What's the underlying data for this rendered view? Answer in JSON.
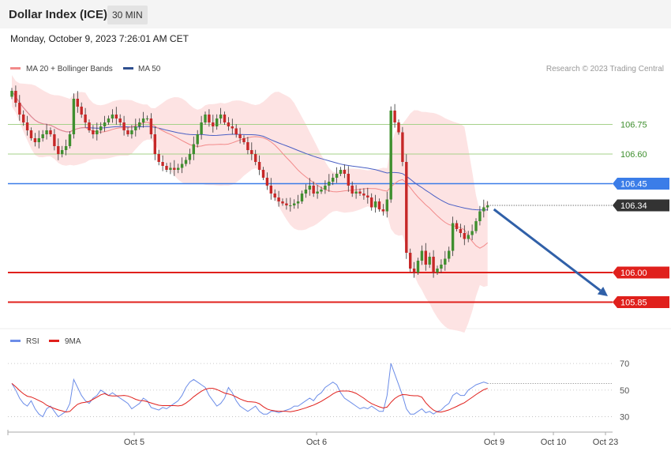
{
  "header": {
    "title": "Dollar Index (ICE)",
    "interval": "30 MIN"
  },
  "timestamp": "Monday, October 9, 2023 7:26:01 AM CET",
  "legend": {
    "ma20": "MA 20 + Bollinger Bands",
    "ma50": "MA 50",
    "copyright": "Research © 2023 Trading Central",
    "rsi": "RSI",
    "ma9": "9MA"
  },
  "colors": {
    "candle_up": "#3f8f2f",
    "candle_down": "#c62828",
    "ma20": "#f28a8a",
    "ma50": "#4a5fc4",
    "band_fill": "#fde0e0",
    "support": "#e0201c",
    "pivot": "#3b7de8",
    "resistance": "#a6d18a",
    "current": "#333333",
    "arrow": "#3060a8",
    "rsi": "#6c8de8",
    "rsi_ma": "#e0201c"
  },
  "chart_data": [
    {
      "type": "candlestick",
      "y_range": [
        105.74,
        106.98
      ],
      "x_labels": [
        "Oct 5",
        "Oct 6",
        "Oct 9",
        "Oct 10",
        "Oct 23"
      ],
      "price_levels": [
        {
          "label": "106.75",
          "value": 106.75,
          "kind": "resistance"
        },
        {
          "label": "106.60",
          "value": 106.6,
          "kind": "resistance"
        },
        {
          "label": "106.45",
          "value": 106.45,
          "kind": "pivot"
        },
        {
          "label": "106.34",
          "value": 106.34,
          "kind": "current"
        },
        {
          "label": "106.00",
          "value": 106.0,
          "kind": "support"
        },
        {
          "label": "105.85",
          "value": 105.85,
          "kind": "support"
        }
      ],
      "forecast_arrow": {
        "from": 106.32,
        "to": 105.88
      },
      "closes": [
        106.92,
        106.86,
        106.8,
        106.76,
        106.72,
        106.68,
        106.66,
        106.68,
        106.7,
        106.72,
        106.7,
        106.64,
        106.6,
        106.62,
        106.64,
        106.7,
        106.88,
        106.84,
        106.8,
        106.76,
        106.72,
        106.7,
        106.72,
        106.74,
        106.76,
        106.78,
        106.8,
        106.78,
        106.76,
        106.72,
        106.7,
        106.72,
        106.74,
        106.76,
        106.78,
        106.78,
        106.7,
        106.6,
        106.56,
        106.54,
        106.52,
        106.53,
        106.52,
        106.53,
        106.55,
        106.57,
        106.6,
        106.65,
        106.7,
        106.76,
        106.8,
        106.76,
        106.74,
        106.78,
        106.8,
        106.76,
        106.74,
        106.73,
        106.7,
        106.68,
        106.66,
        106.62,
        106.6,
        106.56,
        106.52,
        106.48,
        106.44,
        106.4,
        106.38,
        106.36,
        106.35,
        106.34,
        106.34,
        106.35,
        106.36,
        106.4,
        106.42,
        106.44,
        106.4,
        106.41,
        106.42,
        106.44,
        106.46,
        106.48,
        106.5,
        106.52,
        106.5,
        106.44,
        106.4,
        106.41,
        106.4,
        106.39,
        106.38,
        106.33,
        106.36,
        106.32,
        106.31,
        106.37,
        106.82,
        106.76,
        106.71,
        106.56,
        106.1,
        106.02,
        106.0,
        106.06,
        106.11,
        106.04,
        106.08,
        106.0,
        106.02,
        106.04,
        106.07,
        106.11,
        106.25,
        106.22,
        106.2,
        106.17,
        106.19,
        106.21,
        106.26,
        106.31,
        106.33,
        106.34
      ]
    },
    {
      "type": "line",
      "name": "RSI",
      "y_range": [
        25,
        76
      ],
      "y_ticks": [
        70,
        50,
        30
      ],
      "rsi": [
        55,
        50,
        44,
        40,
        38,
        42,
        36,
        32,
        30,
        36,
        38,
        34,
        30,
        32,
        34,
        40,
        58,
        52,
        46,
        42,
        40,
        44,
        46,
        50,
        48,
        46,
        48,
        46,
        44,
        42,
        40,
        36,
        38,
        40,
        44,
        42,
        37,
        36,
        35,
        37,
        36,
        38,
        40,
        42,
        46,
        52,
        56,
        58,
        56,
        54,
        52,
        46,
        42,
        38,
        40,
        44,
        52,
        48,
        42,
        38,
        36,
        34,
        36,
        38,
        34,
        32,
        32,
        34,
        34,
        33,
        34,
        35,
        36,
        38,
        38,
        40,
        42,
        44,
        42,
        46,
        48,
        52,
        54,
        56,
        54,
        48,
        44,
        42,
        40,
        38,
        36,
        37,
        36,
        38,
        36,
        34,
        34,
        46,
        70,
        62,
        54,
        46,
        36,
        32,
        32,
        34,
        36,
        33,
        34,
        32,
        34,
        35,
        38,
        40,
        46,
        48,
        46,
        46,
        50,
        52,
        54,
        55,
        56,
        55
      ]
    }
  ]
}
